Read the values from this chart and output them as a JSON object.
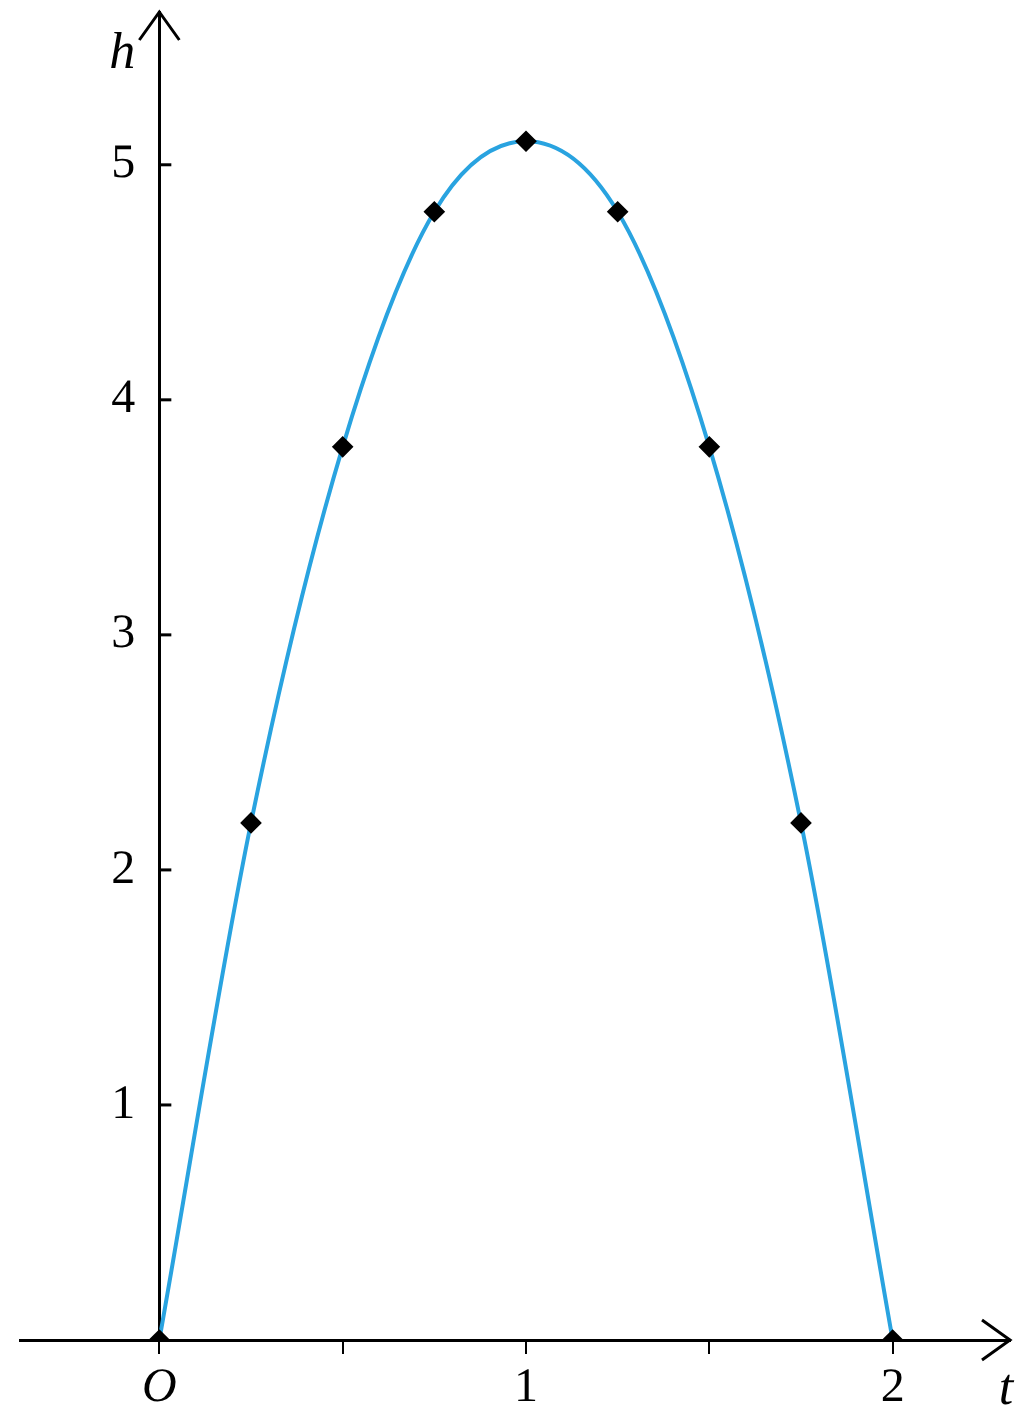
{
  "chart_data": {
    "type": "line",
    "xlabel": "t",
    "ylabel": "h",
    "x": [
      0,
      0.25,
      0.5,
      0.75,
      1,
      1.25,
      1.5,
      1.75,
      2
    ],
    "series": [
      {
        "color": "#29a3e0",
        "marker": "none",
        "values": [
          0,
          2.2,
          3.8,
          4.8,
          5.1,
          4.8,
          3.8,
          2.2,
          0
        ]
      },
      {
        "type": "scatter",
        "color": "#000000",
        "marker": "diamond",
        "values": [
          0,
          2.2,
          3.8,
          4.8,
          5.1,
          4.8,
          3.8,
          2.2,
          0
        ]
      }
    ],
    "xlim": [
      -0.38,
      2.32
    ],
    "ylim": [
      0,
      5.65
    ],
    "xticks": [
      {
        "value": 0,
        "label": "O"
      },
      {
        "value": 0.5,
        "label": null
      },
      1,
      {
        "value": 1.5,
        "label": null
      },
      2
    ],
    "yticks": [
      1,
      2,
      3,
      4,
      5
    ],
    "grid": false,
    "legend": false
  }
}
